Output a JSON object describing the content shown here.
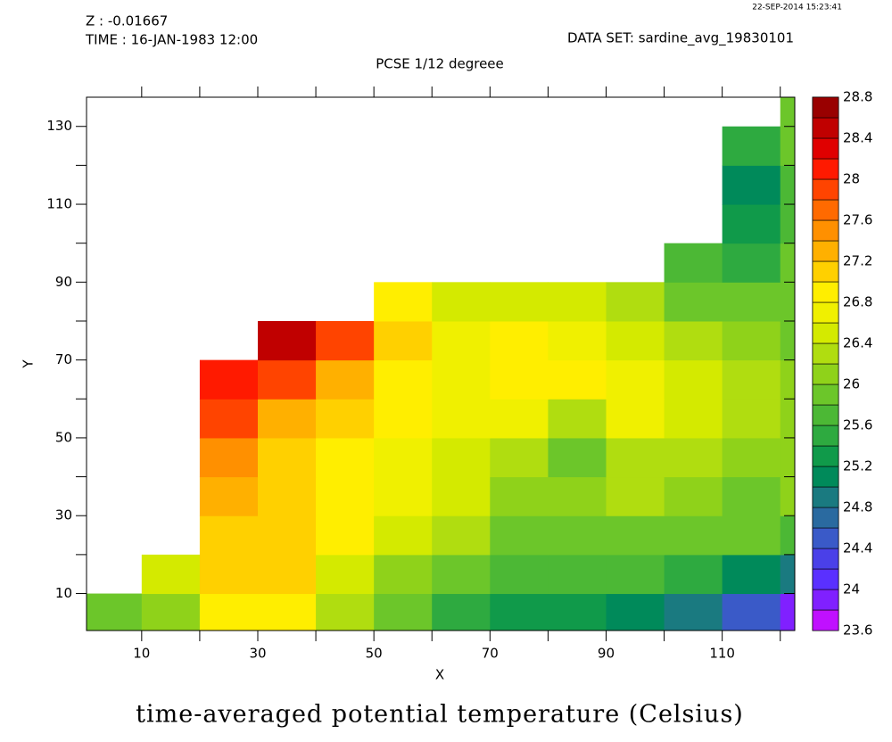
{
  "chart_data": {
    "type": "heatmap",
    "header_left": [
      "Z : -0.01667",
      "TIME : 16-JAN-1983 12:00"
    ],
    "dataset": "DATA SET: sardine_avg_19830101",
    "timestamp": "22-SEP-2014 15:23:41",
    "subtitle": "PCSE 1/12 degreee",
    "title": "time-averaged potential temperature (Celsius)",
    "xlabel": "X",
    "ylabel": "Y",
    "xlim": [
      0.5,
      122.5
    ],
    "ylim": [
      0.5,
      137.5
    ],
    "xticks": [
      10,
      30,
      50,
      70,
      90,
      110
    ],
    "x_minor_ticks": [
      20,
      40,
      60,
      80,
      100,
      120
    ],
    "yticks": [
      10,
      30,
      50,
      70,
      90,
      110,
      130
    ],
    "y_minor_ticks": [
      20,
      40,
      60,
      80,
      100,
      120
    ],
    "x": [
      5,
      15,
      25,
      35,
      45,
      55,
      65,
      75,
      85,
      95,
      105,
      115,
      125
    ],
    "y": [
      5,
      15,
      25,
      35,
      45,
      55,
      65,
      75,
      85,
      95,
      105,
      115,
      125,
      135
    ],
    "z": [
      [
        25.8,
        26.0,
        26.8,
        26.8,
        26.2,
        25.8,
        25.4,
        25.2,
        25.2,
        25.0,
        24.8,
        24.4,
        23.8
      ],
      [
        null,
        26.4,
        27.0,
        27.0,
        26.4,
        26.0,
        25.8,
        25.6,
        25.6,
        25.6,
        25.4,
        25.0,
        24.8
      ],
      [
        null,
        null,
        27.0,
        27.0,
        26.8,
        26.4,
        26.2,
        25.8,
        25.8,
        25.8,
        25.8,
        25.8,
        25.6
      ],
      [
        null,
        null,
        27.2,
        27.0,
        26.8,
        26.6,
        26.4,
        26.0,
        26.0,
        26.2,
        26.0,
        25.8,
        26.0
      ],
      [
        null,
        null,
        27.4,
        27.0,
        26.8,
        26.6,
        26.4,
        26.2,
        25.8,
        26.2,
        26.2,
        26.0,
        26.0
      ],
      [
        null,
        null,
        27.8,
        27.2,
        27.0,
        26.8,
        26.6,
        26.6,
        26.2,
        26.6,
        26.4,
        26.2,
        26.0
      ],
      [
        null,
        null,
        28.0,
        27.8,
        27.2,
        26.8,
        26.6,
        26.8,
        26.8,
        26.6,
        26.4,
        26.2,
        26.0
      ],
      [
        null,
        null,
        null,
        28.4,
        27.8,
        27.0,
        26.6,
        26.8,
        26.6,
        26.4,
        26.2,
        26.0,
        25.8
      ],
      [
        null,
        null,
        null,
        null,
        null,
        26.8,
        26.4,
        26.4,
        26.4,
        26.2,
        25.8,
        25.8,
        25.8
      ],
      [
        null,
        null,
        null,
        null,
        null,
        null,
        null,
        null,
        null,
        null,
        25.6,
        25.4,
        25.8
      ],
      [
        null,
        null,
        null,
        null,
        null,
        null,
        null,
        null,
        null,
        null,
        null,
        25.2,
        25.6
      ],
      [
        null,
        null,
        null,
        null,
        null,
        null,
        null,
        null,
        null,
        null,
        null,
        25.0,
        25.6
      ],
      [
        null,
        null,
        null,
        null,
        null,
        null,
        null,
        null,
        null,
        null,
        null,
        25.4,
        25.8
      ],
      [
        null,
        null,
        null,
        null,
        null,
        null,
        null,
        null,
        null,
        null,
        null,
        null,
        25.8
      ]
    ],
    "colorbar": {
      "levels": [
        23.6,
        23.8,
        24.0,
        24.2,
        24.4,
        24.6,
        24.8,
        25.0,
        25.2,
        25.4,
        25.6,
        25.8,
        26.0,
        26.2,
        26.4,
        26.6,
        26.8,
        27.0,
        27.2,
        27.4,
        27.6,
        27.8,
        28.0,
        28.2,
        28.4,
        28.6,
        28.8
      ],
      "colors": [
        "#c010ff",
        "#8020ff",
        "#5a30ff",
        "#4a40e8",
        "#3a5ac8",
        "#2a6aa0",
        "#1a7a80",
        "#008a5a",
        "#109a4a",
        "#2eaa40",
        "#4cb835",
        "#6cc62a",
        "#8fd21a",
        "#b0dd10",
        "#d4ea00",
        "#f0f000",
        "#ffee00",
        "#ffd000",
        "#ffb000",
        "#ff9000",
        "#ff6a00",
        "#ff4400",
        "#ff1a00",
        "#e00000",
        "#c00000",
        "#990000"
      ],
      "ticks": [
        23.6,
        24,
        24.4,
        24.8,
        25.2,
        25.6,
        26,
        26.4,
        26.8,
        27.2,
        27.6,
        28,
        28.4,
        28.8
      ]
    }
  }
}
